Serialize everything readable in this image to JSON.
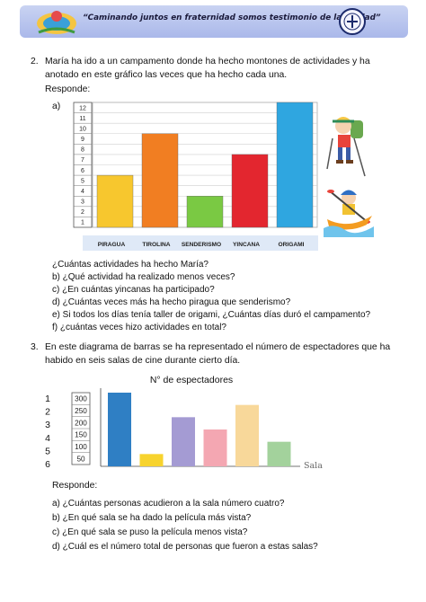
{
  "header": {
    "motto": "“Caminando juntos en fraternidad somos testimonio de la verdad”"
  },
  "q2": {
    "number": "2.",
    "line1": "María ha ido a un campamento donde ha hecho montones de actividades y ha",
    "line2": "anotado en este gráfico las veces que ha hecho cada una.",
    "responde": "Responde:",
    "part_label": "a)",
    "questions": [
      "¿Cuántas actividades ha hecho María?",
      "b) ¿Qué actividad ha realizado menos veces?",
      "c) ¿En cuántas yincanas ha participado?",
      "d) ¿Cuántas veces más ha hecho piragua que senderismo?",
      "e) Si todos los días tenía taller de origami, ¿Cuántas días duró el campamento?",
      "f)  ¿cuántas veces hizo actividades en total?"
    ]
  },
  "q3": {
    "number": "3.",
    "line1": "En este diagrama de barras se ha representado el número de espectadores que ha",
    "line2": "habido en seis salas de cine durante cierto día.",
    "responde": "Responde:",
    "questions": [
      "a) ¿Cuántas personas acudieron a la sala número cuatro?",
      "b) ¿En qué sala se ha dado la película más vista?",
      "c) ¿En qué sala se puso la película menos vista?",
      "d) ¿Cuál es el número total de personas que fueron a estas salas?"
    ]
  },
  "chart_data": [
    {
      "type": "bar",
      "categories": [
        "PIRAGUA",
        "TIROLINA",
        "SENDERISMO",
        "YINCANA",
        "ORIGAMI"
      ],
      "values": [
        5,
        9,
        3,
        7,
        12
      ],
      "ytick_labels": [
        "12",
        "11",
        "10",
        "9",
        "8",
        "7",
        "6",
        "5",
        "4",
        "3",
        "2",
        "1"
      ],
      "ylim": [
        0,
        12
      ],
      "colors": [
        "#f7c72e",
        "#f17e22",
        "#7ac943",
        "#e3262f",
        "#2fa6e0"
      ]
    },
    {
      "type": "bar",
      "title": "N° de espectadores",
      "xlabel": "Sala",
      "categories": [
        "1",
        "2",
        "3",
        "4",
        "5",
        "6"
      ],
      "values": [
        300,
        50,
        200,
        150,
        250,
        100
      ],
      "ytick_labels": [
        "300",
        "250",
        "200",
        "150",
        "100",
        "50"
      ],
      "ylim": [
        0,
        300
      ],
      "colors": [
        "#2f7fc4",
        "#f7d32e",
        "#a49bd3",
        "#f4a7b2",
        "#f8d89a",
        "#a3d29c"
      ]
    }
  ]
}
